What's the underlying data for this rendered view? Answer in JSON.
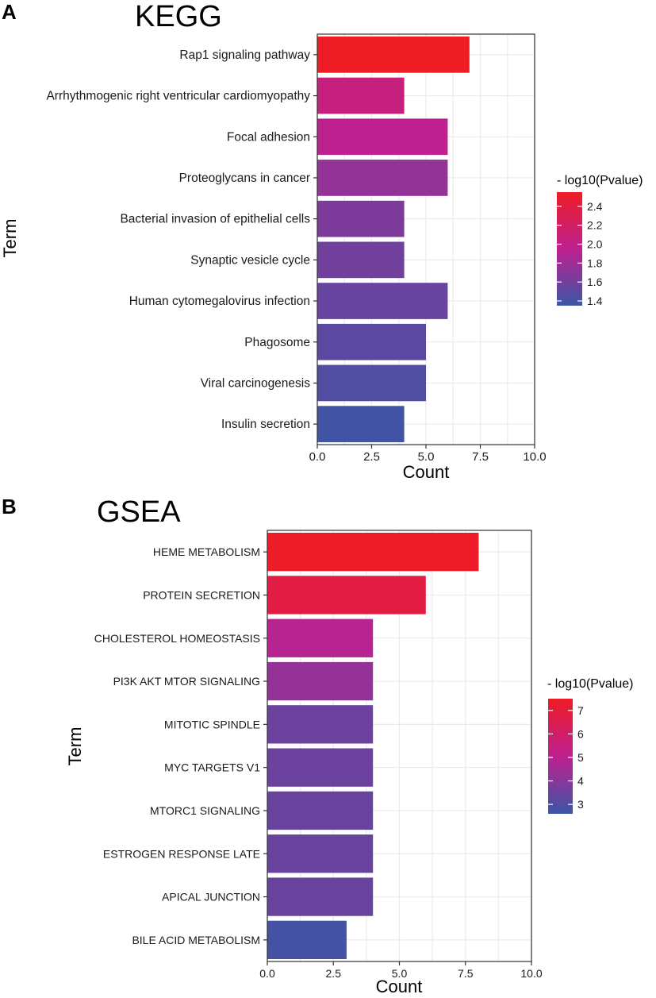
{
  "chart_data": [
    {
      "type": "bar",
      "orientation": "horizontal",
      "panel_label": "A",
      "title": "KEGG",
      "xlabel": "Count",
      "ylabel": "Term",
      "xlim": [
        0,
        10
      ],
      "x_ticks": [
        "0.0",
        "2.5",
        "5.0",
        "7.5",
        "10.0"
      ],
      "categories": [
        "Rap1 signaling pathway",
        "Arrhythmogenic right ventricular cardiomyopathy",
        "Focal adhesion",
        "Proteoglycans in cancer",
        "Bacterial invasion of epithelial cells",
        "Synaptic vesicle cycle",
        "Human cytomegalovirus infection",
        "Phagosome",
        "Viral carcinogenesis",
        "Insulin secretion"
      ],
      "values": [
        7,
        4,
        6,
        6,
        4,
        4,
        6,
        5,
        5,
        4
      ],
      "color_values": [
        2.55,
        2.05,
        1.95,
        1.75,
        1.65,
        1.6,
        1.55,
        1.5,
        1.45,
        1.38
      ],
      "color_range": [
        1.35,
        2.55
      ],
      "legend": {
        "title": "- log10(Pvalue)",
        "ticks": [
          "2.4",
          "2.2",
          "2.0",
          "1.8",
          "1.6",
          "1.4"
        ],
        "tick_values": [
          2.4,
          2.2,
          2.0,
          1.8,
          1.6,
          1.4
        ],
        "placement": "right"
      },
      "colors": {
        "high": "#ee1c25",
        "mid": "#bf2090",
        "low": "#3a56a6"
      }
    },
    {
      "type": "bar",
      "orientation": "horizontal",
      "panel_label": "B",
      "title": "GSEA",
      "xlabel": "Count",
      "ylabel": "Term",
      "xlim": [
        0,
        10
      ],
      "x_ticks": [
        "0.0",
        "2.5",
        "5.0",
        "7.5",
        "10.0"
      ],
      "categories": [
        "HEME METABOLISM",
        "PROTEIN SECRETION",
        "CHOLESTEROL HOMEOSTASIS",
        "PI3K AKT MTOR SIGNALING",
        "MITOTIC SPINDLE",
        "MYC TARGETS V1",
        "MTORC1 SIGNALING",
        "ESTROGEN RESPONSE LATE",
        "APICAL JUNCTION",
        "BILE ACID METABOLISM"
      ],
      "values": [
        8,
        6,
        4,
        4,
        4,
        4,
        4,
        4,
        4,
        3
      ],
      "color_values": [
        7.4,
        6.8,
        4.9,
        4.3,
        3.5,
        3.5,
        3.45,
        3.45,
        3.45,
        2.8
      ],
      "color_range": [
        2.6,
        7.5
      ],
      "legend": {
        "title": "- log10(Pvalue)",
        "ticks": [
          "7",
          "6",
          "5",
          "4",
          "3"
        ],
        "tick_values": [
          7,
          6,
          5,
          4,
          3
        ],
        "placement": "right"
      },
      "colors": {
        "high": "#ee1c25",
        "mid": "#bf2090",
        "low": "#3a56a6"
      }
    }
  ]
}
